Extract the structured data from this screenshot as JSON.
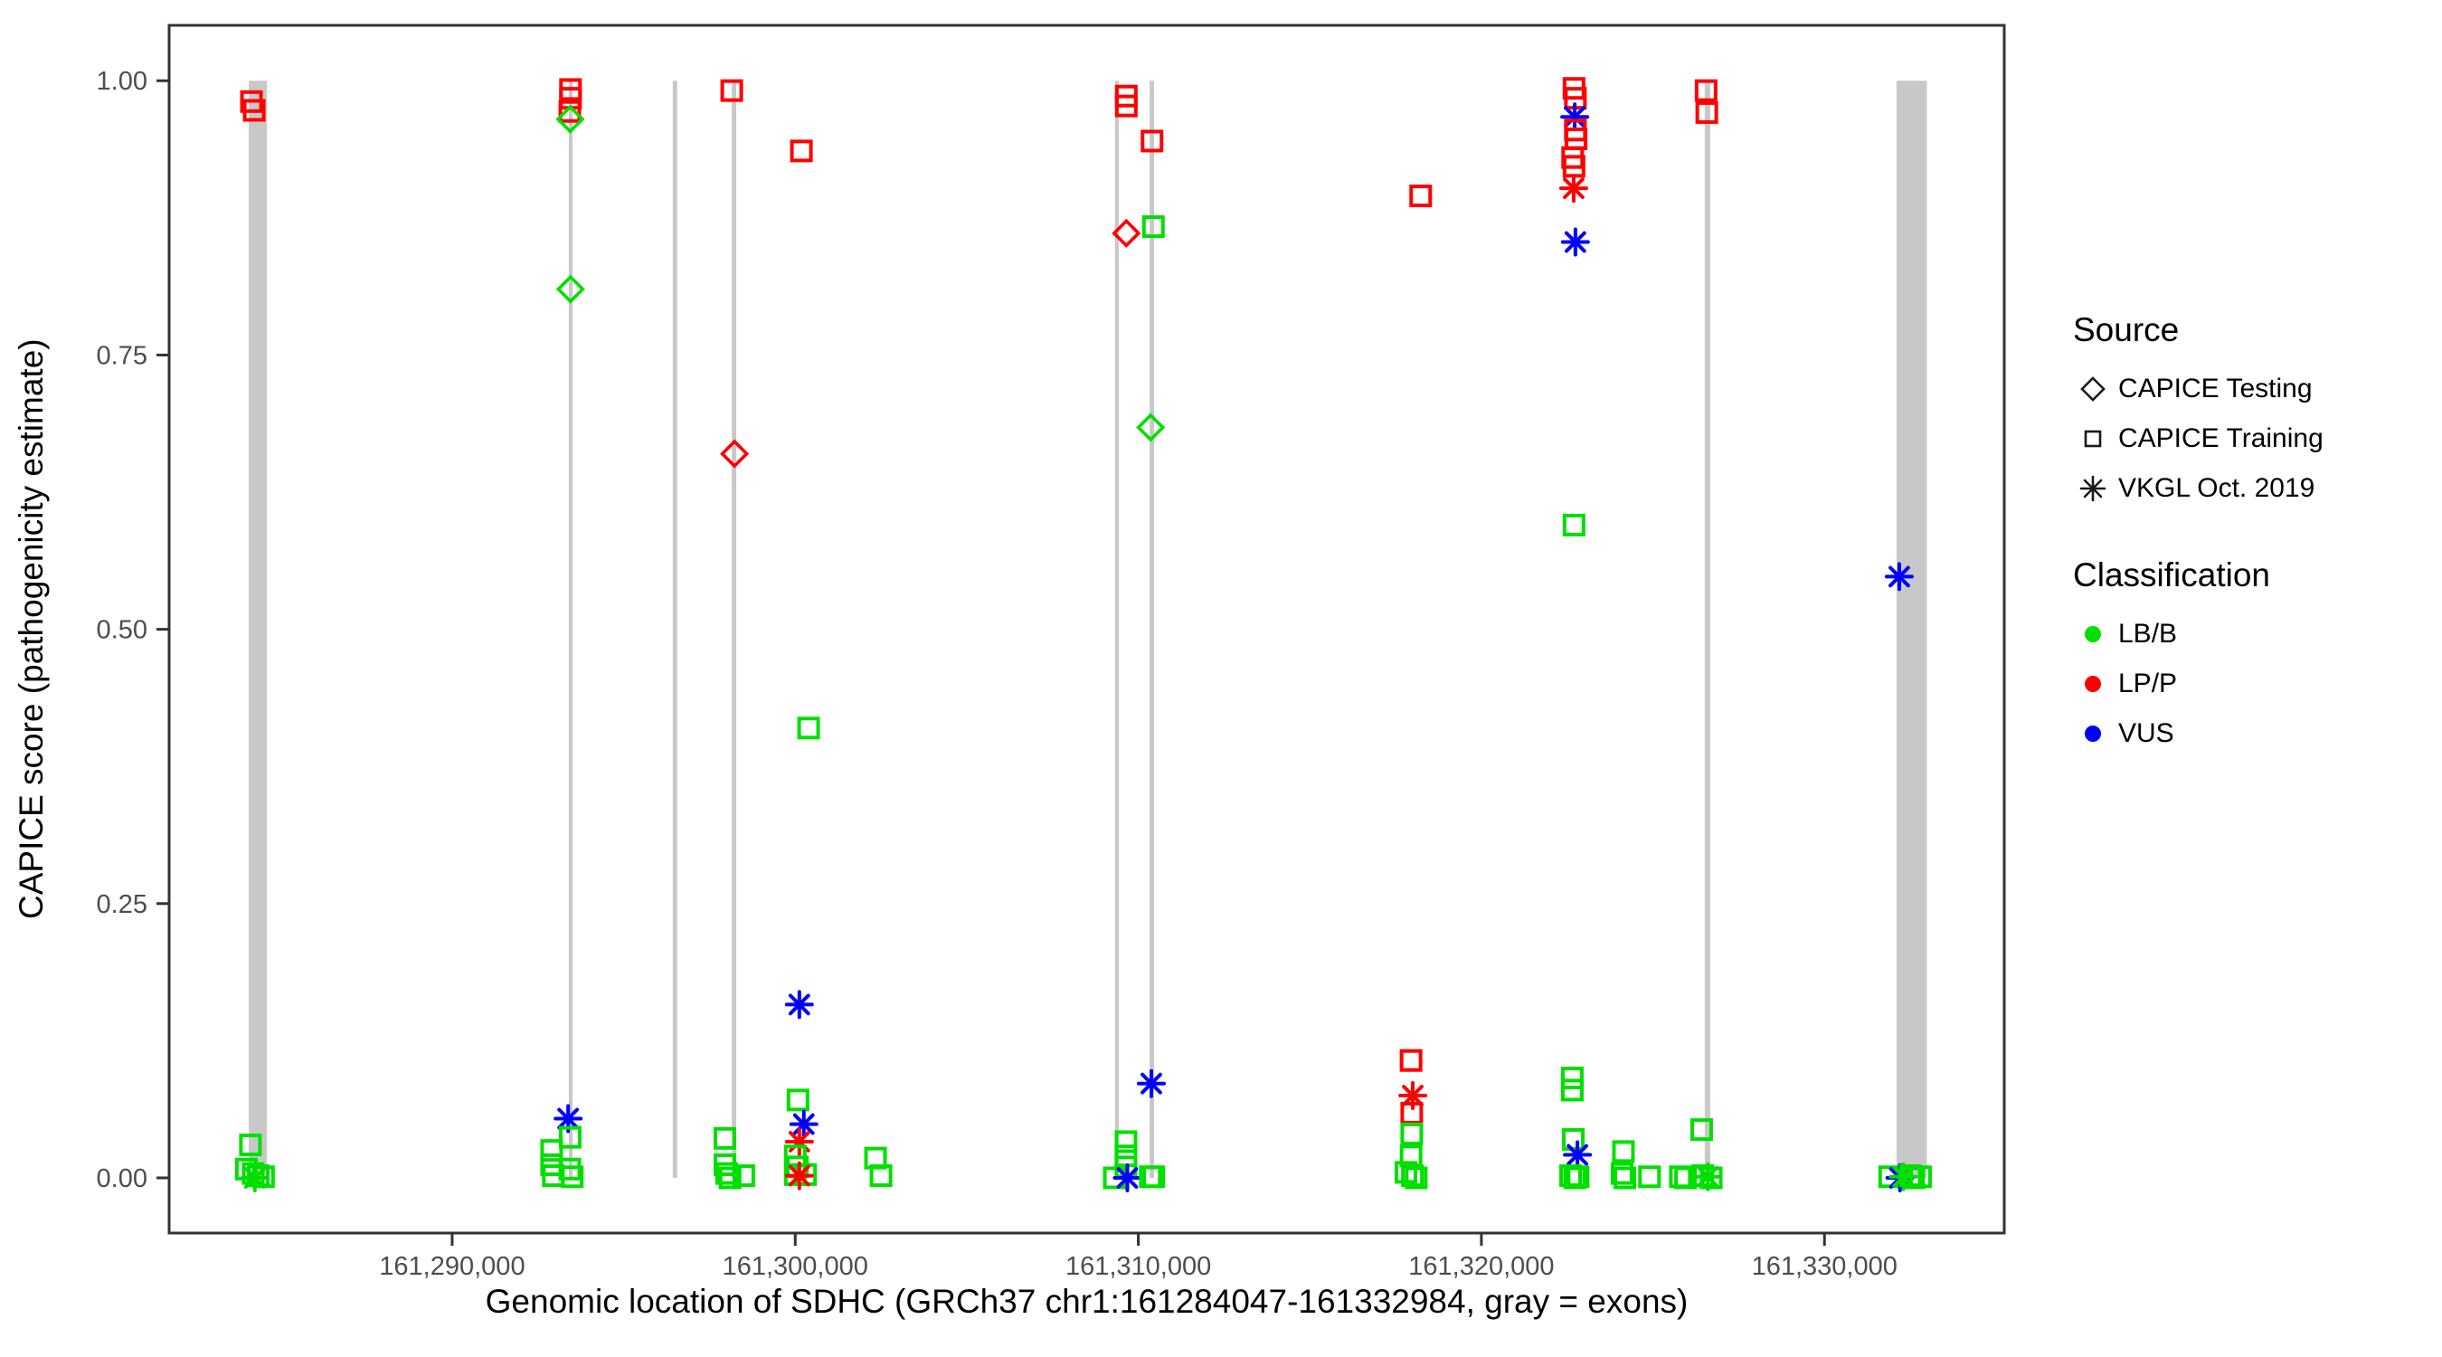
{
  "axes": {
    "x_label": "Genomic location of SDHC (GRCh37 chr1:161284047-161332984, gray = exons)",
    "y_label": "CAPICE score (pathogenicity estimate)"
  },
  "legend": {
    "source": {
      "title": "Source",
      "items": [
        {
          "label": "CAPICE Testing",
          "symbol": "diamond"
        },
        {
          "label": "CAPICE Training",
          "symbol": "square"
        },
        {
          "label": "VKGL Oct. 2019",
          "symbol": "asterisk"
        }
      ]
    },
    "classification": {
      "title": "Classification",
      "items": [
        {
          "label": "LB/B",
          "color": "#00e000"
        },
        {
          "label": "LP/P",
          "color": "#ff0000"
        },
        {
          "label": "VUS",
          "color": "#0000ff"
        }
      ]
    }
  },
  "chart_data": {
    "type": "scatter",
    "title": "",
    "xlabel": "Genomic location of SDHC (GRCh37 chr1:161284047-161332984, gray = exons)",
    "ylabel": "CAPICE score (pathogenicity estimate)",
    "x_range_bp": [
      161281750,
      161335240
    ],
    "y_range": [
      -0.0503,
      1.0505
    ],
    "x_ticks": [
      {
        "bp": 161290000,
        "label": "161,290,000"
      },
      {
        "bp": 161300000,
        "label": "161,300,000"
      },
      {
        "bp": 161310000,
        "label": "161,310,000"
      },
      {
        "bp": 161320000,
        "label": "161,320,000"
      },
      {
        "bp": 161330000,
        "label": "161,330,000"
      }
    ],
    "y_ticks": [
      {
        "value": 0.0,
        "label": "0.00"
      },
      {
        "value": 0.25,
        "label": "0.25"
      },
      {
        "value": 0.5,
        "label": "0.50"
      },
      {
        "value": 0.75,
        "label": "0.75"
      },
      {
        "value": 1.0,
        "label": "1.00"
      }
    ],
    "grid": false,
    "legend_position": "right",
    "exon_color": "#c8c8c8",
    "panel_border_color": "#333333",
    "tick_label_color": "#4d4d4d",
    "series_colors": {
      "LB/B": "#00e000",
      "LP/P": "#ff0000",
      "VUS": "#0000ff"
    },
    "source_shapes": {
      "testing": "diamond",
      "training": "square",
      "vkgl": "asterisk"
    },
    "exons_bp": [
      [
        161284070,
        161284600
      ],
      [
        161293400,
        161293510
      ],
      [
        161296430,
        161296560
      ],
      [
        161298150,
        161298280
      ],
      [
        161309320,
        161309430
      ],
      [
        161310330,
        161310460
      ],
      [
        161326510,
        161326670
      ],
      [
        161332100,
        161332984
      ]
    ],
    "points_format": [
      "bp",
      "score",
      "source",
      "classification"
    ],
    "points": [
      [
        161284150,
        0.981,
        "training",
        "LP/P"
      ],
      [
        161284230,
        0.973,
        "training",
        "LP/P"
      ],
      [
        161284120,
        0.03,
        "training",
        "LB/B"
      ],
      [
        161284000,
        0.008,
        "training",
        "LB/B"
      ],
      [
        161284200,
        0.004,
        "training",
        "LB/B"
      ],
      [
        161284350,
        0.002,
        "training",
        "LB/B"
      ],
      [
        161284500,
        0.001,
        "training",
        "LB/B"
      ],
      [
        161284250,
        0.0,
        "vkgl",
        "LB/B"
      ],
      [
        161293450,
        0.992,
        "training",
        "LP/P"
      ],
      [
        161293450,
        0.984,
        "training",
        "LP/P"
      ],
      [
        161293430,
        0.972,
        "training",
        "LP/P"
      ],
      [
        161293440,
        0.965,
        "testing",
        "LB/B"
      ],
      [
        161293450,
        0.81,
        "testing",
        "LB/B"
      ],
      [
        161293380,
        0.054,
        "vkgl",
        "VUS"
      ],
      [
        161292900,
        0.025,
        "training",
        "LB/B"
      ],
      [
        161292900,
        0.012,
        "training",
        "LB/B"
      ],
      [
        161292950,
        0.002,
        "training",
        "LB/B"
      ],
      [
        161293440,
        0.037,
        "training",
        "LB/B"
      ],
      [
        161293430,
        0.008,
        "training",
        "LB/B"
      ],
      [
        161293500,
        0.001,
        "training",
        "LB/B"
      ],
      [
        161298150,
        0.991,
        "training",
        "LP/P"
      ],
      [
        161298230,
        0.66,
        "testing",
        "LP/P"
      ],
      [
        161297950,
        0.036,
        "training",
        "LB/B"
      ],
      [
        161297950,
        0.012,
        "training",
        "LB/B"
      ],
      [
        161298000,
        0.004,
        "training",
        "LB/B"
      ],
      [
        161298100,
        0.0,
        "training",
        "LB/B"
      ],
      [
        161298500,
        0.002,
        "training",
        "LB/B"
      ],
      [
        161300180,
        0.936,
        "training",
        "LP/P"
      ],
      [
        161300390,
        0.41,
        "training",
        "LB/B"
      ],
      [
        161300120,
        0.158,
        "vkgl",
        "VUS"
      ],
      [
        161300080,
        0.071,
        "training",
        "LB/B"
      ],
      [
        161300250,
        0.049,
        "vkgl",
        "VUS"
      ],
      [
        161300120,
        0.033,
        "vkgl",
        "LP/P"
      ],
      [
        161300000,
        0.02,
        "training",
        "LB/B"
      ],
      [
        161300060,
        0.01,
        "training",
        "LB/B"
      ],
      [
        161300000,
        0.003,
        "training",
        "LB/B"
      ],
      [
        161300300,
        0.003,
        "training",
        "LB/B"
      ],
      [
        161300120,
        0.002,
        "vkgl",
        "LP/P"
      ],
      [
        161302340,
        0.018,
        "training",
        "LB/B"
      ],
      [
        161302500,
        0.002,
        "training",
        "LB/B"
      ],
      [
        161309650,
        0.986,
        "training",
        "LP/P"
      ],
      [
        161309650,
        0.977,
        "training",
        "LP/P"
      ],
      [
        161310400,
        0.945,
        "training",
        "LP/P"
      ],
      [
        161309650,
        0.861,
        "testing",
        "LP/P"
      ],
      [
        161310440,
        0.867,
        "training",
        "LB/B"
      ],
      [
        161310360,
        0.684,
        "testing",
        "LB/B"
      ],
      [
        161309640,
        0.033,
        "training",
        "LB/B"
      ],
      [
        161309640,
        0.02,
        "training",
        "LB/B"
      ],
      [
        161309640,
        0.01,
        "training",
        "LB/B"
      ],
      [
        161309300,
        0.0,
        "training",
        "LB/B"
      ],
      [
        161309680,
        0.0,
        "vkgl",
        "VUS"
      ],
      [
        161310380,
        0.086,
        "vkgl",
        "VUS"
      ],
      [
        161310350,
        0.001,
        "training",
        "LB/B"
      ],
      [
        161310450,
        0.001,
        "training",
        "LB/B"
      ],
      [
        161318230,
        0.895,
        "training",
        "LP/P"
      ],
      [
        161317950,
        0.107,
        "training",
        "LP/P"
      ],
      [
        161318000,
        0.075,
        "vkgl",
        "LP/P"
      ],
      [
        161317970,
        0.059,
        "training",
        "LP/P"
      ],
      [
        161317970,
        0.04,
        "training",
        "LB/B"
      ],
      [
        161317950,
        0.02,
        "training",
        "LB/B"
      ],
      [
        161317800,
        0.005,
        "training",
        "LB/B"
      ],
      [
        161317990,
        0.002,
        "training",
        "LB/B"
      ],
      [
        161318100,
        0.0,
        "training",
        "LB/B"
      ],
      [
        161322700,
        0.993,
        "training",
        "LP/P"
      ],
      [
        161322740,
        0.984,
        "training",
        "LP/P"
      ],
      [
        161322720,
        0.967,
        "vkgl",
        "VUS"
      ],
      [
        161322740,
        0.955,
        "training",
        "LP/P"
      ],
      [
        161322760,
        0.947,
        "training",
        "LP/P"
      ],
      [
        161322660,
        0.93,
        "training",
        "LP/P"
      ],
      [
        161322700,
        0.922,
        "training",
        "LP/P"
      ],
      [
        161322690,
        0.902,
        "vkgl",
        "LP/P"
      ],
      [
        161322740,
        0.853,
        "vkgl",
        "VUS"
      ],
      [
        161322700,
        0.595,
        "training",
        "LB/B"
      ],
      [
        161322650,
        0.091,
        "training",
        "LB/B"
      ],
      [
        161322650,
        0.08,
        "training",
        "LB/B"
      ],
      [
        161322680,
        0.035,
        "training",
        "LB/B"
      ],
      [
        161322800,
        0.021,
        "vkgl",
        "VUS"
      ],
      [
        161322600,
        0.002,
        "training",
        "LB/B"
      ],
      [
        161322720,
        0.0,
        "training",
        "LB/B"
      ],
      [
        161322820,
        0.001,
        "training",
        "LB/B"
      ],
      [
        161324140,
        0.024,
        "training",
        "LB/B"
      ],
      [
        161324100,
        0.004,
        "training",
        "LB/B"
      ],
      [
        161324180,
        0.0,
        "training",
        "LB/B"
      ],
      [
        161324900,
        0.001,
        "training",
        "LB/B"
      ],
      [
        161325800,
        0.001,
        "training",
        "LB/B"
      ],
      [
        161325950,
        0.0,
        "training",
        "LB/B"
      ],
      [
        161326420,
        0.044,
        "training",
        "LB/B"
      ],
      [
        161326450,
        0.002,
        "training",
        "LB/B"
      ],
      [
        161326600,
        0.001,
        "vkgl",
        "LB/B"
      ],
      [
        161326700,
        0.0,
        "training",
        "LB/B"
      ],
      [
        161326550,
        0.991,
        "training",
        "LP/P"
      ],
      [
        161326570,
        0.971,
        "training",
        "LP/P"
      ],
      [
        161332180,
        0.548,
        "vkgl",
        "VUS"
      ],
      [
        161331900,
        0.001,
        "training",
        "LB/B"
      ],
      [
        161332200,
        0.0,
        "vkgl",
        "VUS"
      ],
      [
        161332300,
        0.001,
        "vkgl",
        "LB/B"
      ],
      [
        161332500,
        0.002,
        "training",
        "LB/B"
      ],
      [
        161332600,
        0.0,
        "training",
        "LB/B"
      ],
      [
        161332800,
        0.001,
        "training",
        "LB/B"
      ]
    ]
  }
}
